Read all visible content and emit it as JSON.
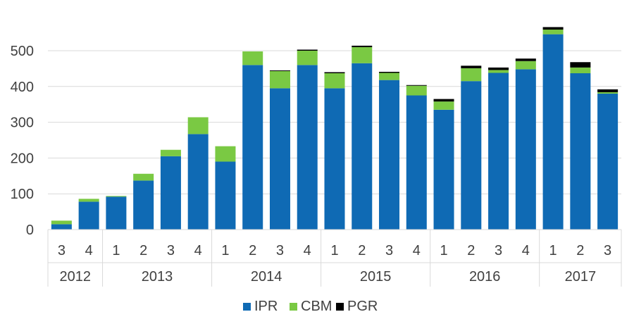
{
  "chart_data": {
    "type": "bar",
    "stacked": true,
    "title": "",
    "xlabel": "",
    "ylabel": "",
    "ylim": [
      0,
      570
    ],
    "yticks": [
      0,
      100,
      200,
      300,
      400,
      500
    ],
    "grid": true,
    "legend_position": "bottom",
    "quarter_labels": [
      "3",
      "4",
      "1",
      "2",
      "3",
      "4",
      "1",
      "2",
      "3",
      "4",
      "1",
      "2",
      "3",
      "4",
      "1",
      "2",
      "3",
      "4",
      "1",
      "2",
      "3"
    ],
    "year_groups": [
      {
        "label": "2012",
        "count": 2
      },
      {
        "label": "2013",
        "count": 4
      },
      {
        "label": "2014",
        "count": 4
      },
      {
        "label": "2015",
        "count": 4
      },
      {
        "label": "2016",
        "count": 4
      },
      {
        "label": "2017",
        "count": 3
      }
    ],
    "series": [
      {
        "name": "IPR",
        "color": "#0f6ab4",
        "values": [
          15,
          78,
          92,
          137,
          205,
          267,
          190,
          460,
          395,
          460,
          395,
          465,
          418,
          375,
          335,
          415,
          438,
          448,
          546,
          437,
          380
        ]
      },
      {
        "name": "CBM",
        "color": "#7ac943",
        "values": [
          10,
          8,
          2,
          19,
          18,
          47,
          43,
          38,
          48,
          40,
          42,
          45,
          20,
          27,
          23,
          36,
          8,
          23,
          13,
          16,
          4
        ]
      },
      {
        "name": "PGR",
        "color": "#000000",
        "values": [
          0,
          0,
          0,
          0,
          0,
          0,
          0,
          0,
          2,
          3,
          3,
          4,
          3,
          2,
          7,
          7,
          7,
          7,
          7,
          15,
          8
        ]
      }
    ]
  }
}
